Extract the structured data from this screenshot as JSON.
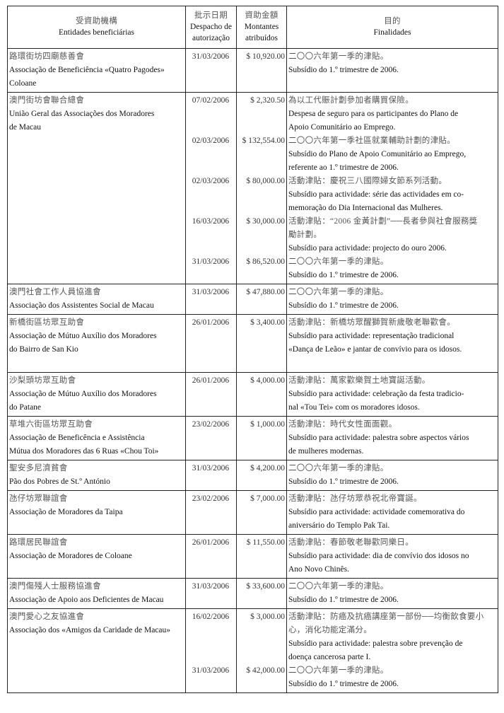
{
  "header": {
    "entity_zh": "受資助機構",
    "entity_pt": "Entidades beneficiárias",
    "date_zh": "批示日期",
    "date_pt_1": "Despacho de",
    "date_pt_2": "autorização",
    "amount_zh": "資助金額",
    "amount_pt_1": "Montantes",
    "amount_pt_2": "atribuídos",
    "purpose_zh": "目的",
    "purpose_pt": "Finalidades"
  },
  "rows": [
    {
      "name": [
        [
          "zh",
          "路環街坊四廟慈善會"
        ],
        [
          "pt",
          "Associação de Beneficiência «Quatro Pagodes»"
        ],
        [
          "pt",
          "Coloane"
        ]
      ],
      "entries": [
        {
          "date": "31/03/2006",
          "amount": "$ 10,920.00",
          "purpose": [
            [
              "zh",
              "二〇〇六年第一季的津貼。"
            ],
            [
              "pt",
              "Subsídio do 1.º trimestre de 2006."
            ]
          ]
        }
      ]
    },
    {
      "name": [
        [
          "zh",
          "澳門街坊會聯合總會"
        ],
        [
          "pt",
          "União Geral das Associações dos Moradores"
        ],
        [
          "pt",
          "de Macau"
        ]
      ],
      "entries": [
        {
          "date": "07/02/2006",
          "amount": "$ 2,320.50",
          "purpose": [
            [
              "zh",
              "為以工代賑計劃參加者購買保險。"
            ],
            [
              "pt",
              "Despesa de seguro para os participantes do Plano de"
            ],
            [
              "pt",
              "Apoio Comunitário ao Emprego."
            ]
          ]
        },
        {
          "date": "02/03/2006",
          "amount": "$ 132,554.00",
          "purpose": [
            [
              "zh",
              "二〇〇六年第一季社區就業輔助計劃的津貼。"
            ],
            [
              "pt",
              "Subsídio do Plano de Apoio Comunitário ao Emprego,"
            ],
            [
              "pt",
              "referente ao 1.º trimestre de 2006."
            ]
          ]
        },
        {
          "date": "02/03/2006",
          "amount": "$ 80,000.00",
          "purpose": [
            [
              "zh",
              "活動津貼：慶祝三八國際婦女節系列活動。"
            ],
            [
              "pt",
              "Subsídio para actividade: série das actividades em co-"
            ],
            [
              "pt",
              "memoração do Dia Internacional das Mulheres."
            ]
          ]
        },
        {
          "date": "16/03/2006",
          "amount": "$ 30,000.00",
          "purpose": [
            [
              "zh",
              "活動津貼：“2006 金黃計劃”──長者參與社會服務獎"
            ],
            [
              "zh",
              "勵計劃。"
            ],
            [
              "pt",
              "Subsídio para actividade: projecto do ouro 2006."
            ]
          ]
        },
        {
          "date": "31/03/2006",
          "amount": "$ 86,520.00",
          "purpose": [
            [
              "zh",
              "二〇〇六年第一季的津貼。"
            ],
            [
              "pt",
              "Subsídio do 1.º trimestre de 2006."
            ]
          ]
        }
      ]
    },
    {
      "name": [
        [
          "zh",
          "澳門社會工作人員協進會"
        ],
        [
          "pt",
          "Associação dos Assistentes Social de Macau"
        ]
      ],
      "entries": [
        {
          "date": "31/03/2006",
          "amount": "$ 47,880.00",
          "purpose": [
            [
              "zh",
              "二〇〇六年第一季的津貼。"
            ],
            [
              "pt",
              "Subsídio do 1.º trimestre de 2006."
            ]
          ]
        }
      ]
    },
    {
      "name": [
        [
          "zh",
          "新橋街區坊眾互助會"
        ],
        [
          "pt",
          "Associação de Mútuo Auxílio dos Moradores"
        ],
        [
          "pt",
          "do Bairro de San Kio"
        ]
      ],
      "entries": [
        {
          "date": "26/01/2006",
          "amount": "$ 3,400.00",
          "purpose": [
            [
              "zh",
              "活動津貼：新橋坊眾醒獅賀新歲敬老聯歡會。"
            ],
            [
              "pt",
              "Subsídio para actividade: representação tradicional"
            ],
            [
              "pt",
              "«Dança de Leão» e jantar de convívio para os idosos."
            ]
          ]
        }
      ]
    },
    {
      "name": [
        [
          "zh",
          "沙梨頭坊眾互助會"
        ],
        [
          "pt",
          "Associação de Mútuo Auxílio dos Moradores"
        ],
        [
          "pt",
          "do Patane"
        ]
      ],
      "entries": [
        {
          "date": "26/01/2006",
          "amount": "$ 4,000.00",
          "purpose": [
            [
              "zh",
              "活動津貼：萬家歡樂賀土地寶誕活動。"
            ],
            [
              "pt",
              "Subsídio para actividade: celebração da festa tradicio-"
            ],
            [
              "pt",
              "nal «Tou Tei» com os moradores idosos."
            ]
          ]
        }
      ]
    },
    {
      "name": [
        [
          "zh",
          "草堆六街區坊眾互助會"
        ],
        [
          "pt",
          "Associação de Beneficência e Assistência"
        ],
        [
          "pt",
          "Mútua dos Moradores das 6 Ruas «Chou Toi»"
        ]
      ],
      "entries": [
        {
          "date": "23/02/2006",
          "amount": "$ 1,000.00",
          "purpose": [
            [
              "zh",
              "活動津貼：時代女性面面觀。"
            ],
            [
              "pt",
              "Subsídio para actividade: palestra sobre aspectos vários"
            ],
            [
              "pt",
              "de mulheres modernas."
            ]
          ]
        }
      ]
    },
    {
      "name": [
        [
          "zh",
          "聖安多尼濟貧會"
        ],
        [
          "pt",
          "Pão dos Pobres de St.º António"
        ]
      ],
      "entries": [
        {
          "date": "31/03/2006",
          "amount": "$ 4,200.00",
          "purpose": [
            [
              "zh",
              "二〇〇六年第一季的津貼。"
            ],
            [
              "pt",
              "Subsídio do 1.º trimestre de 2006."
            ]
          ]
        }
      ]
    },
    {
      "name": [
        [
          "zh",
          "氹仔坊眾聯誼會"
        ],
        [
          "pt",
          "Associação de Moradores da Taipa"
        ]
      ],
      "entries": [
        {
          "date": "23/02/2006",
          "amount": "$ 7,000.00",
          "purpose": [
            [
              "zh",
              "活動津貼：氹仔坊眾恭祝北帝寶誕。"
            ],
            [
              "pt",
              "Subsídio para actividade: actividade comemorativa do"
            ],
            [
              "pt",
              "aniversário do Templo Pak Tai."
            ]
          ]
        }
      ]
    },
    {
      "name": [
        [
          "zh",
          "路環居民聯誼會"
        ],
        [
          "pt",
          "Associação de Moradores de Coloane"
        ]
      ],
      "entries": [
        {
          "date": "26/01/2006",
          "amount": "$ 11,550.00",
          "purpose": [
            [
              "zh",
              "活動津貼：春節敬老聯歡同樂日。"
            ],
            [
              "pt",
              "Subsídio para actividade: dia de convívio dos idosos no"
            ],
            [
              "pt",
              "Ano Novo Chinês."
            ]
          ]
        }
      ]
    },
    {
      "name": [
        [
          "zh",
          "澳門傷殘人士服務協進會"
        ],
        [
          "pt",
          "Associação de Apoio aos Deficientes de Macau"
        ]
      ],
      "entries": [
        {
          "date": "31/03/2006",
          "amount": "$ 33,600.00",
          "purpose": [
            [
              "zh",
              "二〇〇六年第一季的津貼。"
            ],
            [
              "pt",
              "Subsídio do 1.º trimestre de 2006."
            ]
          ]
        }
      ]
    },
    {
      "name": [
        [
          "zh",
          "澳門愛心之友協進會"
        ],
        [
          "pt",
          "Associação dos «Amigos da Caridade de Macau»"
        ]
      ],
      "entries": [
        {
          "date": "16/02/2006",
          "amount": "$ 3,000.00",
          "purpose": [
            [
              "zh",
              "活動津貼：防癌及抗癌講座第一部份──均衡飲食要小"
            ],
            [
              "zh",
              "心，消化功能定滿分。"
            ],
            [
              "pt",
              "Subsídio para actividade: palestra sobre prevenção de"
            ],
            [
              "pt",
              "doença cancerosa parte I."
            ]
          ]
        },
        {
          "date": "31/03/2006",
          "amount": "$ 42,000.00",
          "purpose": [
            [
              "zh",
              "二〇〇六年第一季的津貼。"
            ],
            [
              "pt",
              "Subsídio do 1.º trimestre de 2006."
            ]
          ]
        }
      ]
    }
  ]
}
